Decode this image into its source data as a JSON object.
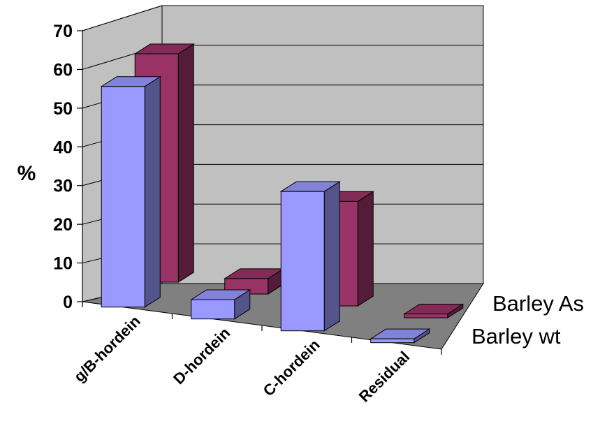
{
  "chart_data": {
    "type": "bar",
    "title": "",
    "xlabel": "",
    "ylabel": "%",
    "ylim": [
      0,
      70
    ],
    "yticks": [
      "0",
      "10",
      "20",
      "30",
      "40",
      "50",
      "60",
      "70"
    ],
    "categories": [
      "g/B-hordein",
      "D-hordein",
      "C-hordein",
      "Residual"
    ],
    "series": [
      {
        "name": "Barley wt",
        "values": [
          57,
          5,
          36,
          1
        ],
        "color": "#9999ff"
      },
      {
        "name": "Barley As",
        "values": [
          59,
          4,
          27,
          1
        ],
        "color": "#993366"
      }
    ],
    "grid": true,
    "legend_position": "right",
    "three_d": true
  }
}
